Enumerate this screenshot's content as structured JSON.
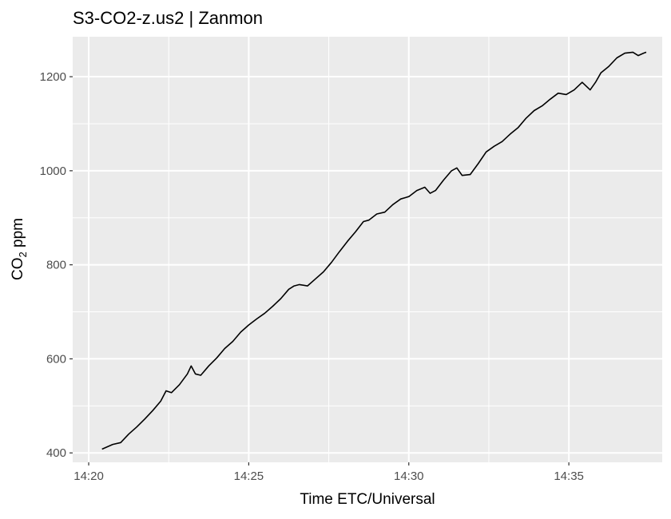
{
  "chart_data": {
    "type": "line",
    "title": "S3-CO2-z.us2 | Zanmon",
    "xlabel": "Time ETC/Universal",
    "ylabel_main": "CO",
    "ylabel_sub": "2",
    "ylabel_tail": " ppm",
    "xlim": [
      "14:19:30",
      "14:37:55"
    ],
    "ylim": [
      380,
      1285
    ],
    "x_ticks": [
      "14:20",
      "14:25",
      "14:30",
      "14:35"
    ],
    "y_ticks": [
      400,
      600,
      800,
      1000,
      1200
    ],
    "grid": true,
    "series": [
      {
        "x": [
          "14:20:25",
          "14:20:45",
          "14:21:00",
          "14:21:15",
          "14:21:30",
          "14:21:45",
          "14:22:00",
          "14:22:15",
          "14:22:25",
          "14:22:35",
          "14:22:50",
          "14:23:05",
          "14:23:12",
          "14:23:20",
          "14:23:30",
          "14:23:45",
          "14:24:00",
          "14:24:15",
          "14:24:30",
          "14:24:45",
          "14:25:00",
          "14:25:15",
          "14:25:30",
          "14:25:45",
          "14:26:00",
          "14:26:15",
          "14:26:25",
          "14:26:35",
          "14:26:50",
          "14:27:05",
          "14:27:20",
          "14:27:35",
          "14:27:50",
          "14:28:05",
          "14:28:20",
          "14:28:35",
          "14:28:45",
          "14:29:00",
          "14:29:15",
          "14:29:30",
          "14:29:45",
          "14:30:00",
          "14:30:15",
          "14:30:30",
          "14:30:40",
          "14:30:50",
          "14:31:05",
          "14:31:20",
          "14:31:30",
          "14:31:40",
          "14:31:55",
          "14:32:10",
          "14:32:25",
          "14:32:40",
          "14:32:55",
          "14:33:10",
          "14:33:25",
          "14:33:40",
          "14:33:55",
          "14:34:10",
          "14:34:25",
          "14:34:40",
          "14:34:55",
          "14:35:10",
          "14:35:25",
          "14:35:40",
          "14:35:50",
          "14:36:00",
          "14:36:15",
          "14:36:30",
          "14:36:45",
          "14:37:00",
          "14:37:10",
          "14:37:20",
          "14:37:25"
        ],
        "values": [
          408,
          418,
          422,
          440,
          455,
          472,
          490,
          510,
          532,
          528,
          545,
          568,
          585,
          568,
          565,
          585,
          602,
          622,
          637,
          657,
          672,
          685,
          697,
          712,
          728,
          748,
          755,
          758,
          755,
          770,
          785,
          805,
          828,
          850,
          870,
          892,
          895,
          908,
          912,
          928,
          940,
          945,
          958,
          965,
          952,
          958,
          980,
          1000,
          1006,
          990,
          992,
          1015,
          1040,
          1052,
          1062,
          1078,
          1092,
          1112,
          1128,
          1138,
          1152,
          1165,
          1162,
          1172,
          1188,
          1172,
          1188,
          1208,
          1222,
          1240,
          1250,
          1252,
          1245,
          1250,
          1252
        ]
      }
    ]
  }
}
